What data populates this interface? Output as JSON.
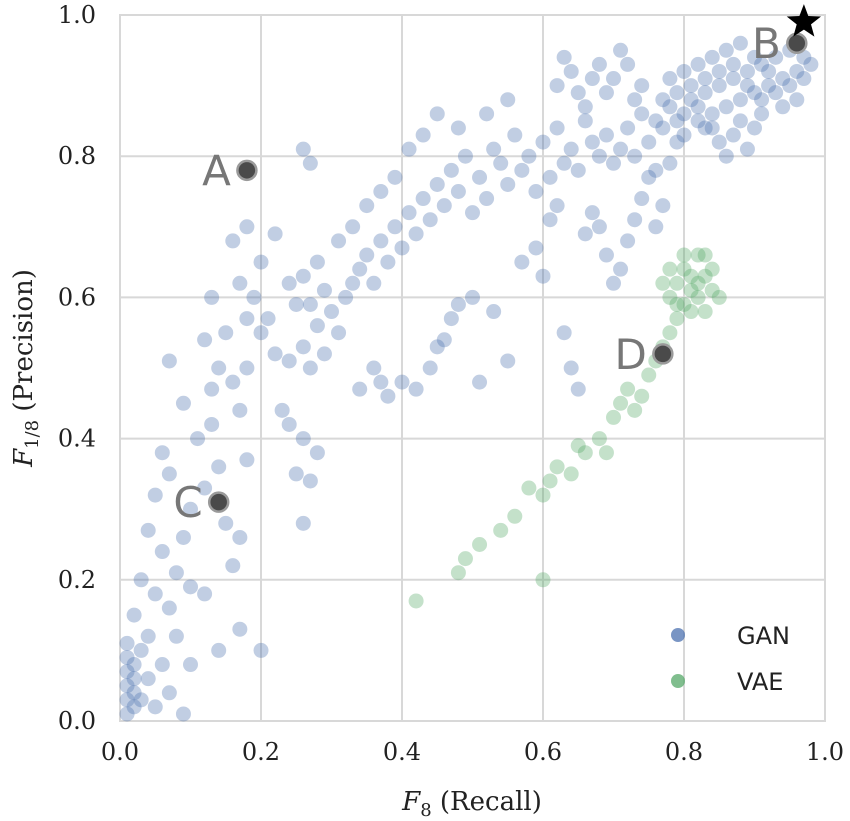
{
  "chart_data": {
    "type": "scatter",
    "title": "",
    "xlabel": {
      "symbol": "F",
      "sub": "8",
      "text": "(Recall)"
    },
    "ylabel": {
      "symbol": "F",
      "sub": "1/8",
      "text": "(Precision)"
    },
    "xlim": [
      0,
      1
    ],
    "ylim": [
      0,
      1
    ],
    "xticks": [
      "0.0",
      "0.2",
      "0.4",
      "0.6",
      "0.8",
      "1.0"
    ],
    "yticks": [
      "0.0",
      "0.2",
      "0.4",
      "0.6",
      "0.8",
      "1.0"
    ],
    "grid": true,
    "legend_position": "bottom-right",
    "colors": {
      "GAN": "#4c72b0",
      "VAE": "#55a868",
      "highlight": "#4a4a4a",
      "grid": "#d8d8d8"
    },
    "series": [
      {
        "name": "GAN",
        "points": [
          [
            0.01,
            0.01
          ],
          [
            0.01,
            0.03
          ],
          [
            0.01,
            0.05
          ],
          [
            0.01,
            0.07
          ],
          [
            0.01,
            0.09
          ],
          [
            0.01,
            0.11
          ],
          [
            0.02,
            0.02
          ],
          [
            0.02,
            0.04
          ],
          [
            0.02,
            0.06
          ],
          [
            0.02,
            0.08
          ],
          [
            0.03,
            0.03
          ],
          [
            0.03,
            0.1
          ],
          [
            0.04,
            0.06
          ],
          [
            0.05,
            0.02
          ],
          [
            0.06,
            0.08
          ],
          [
            0.07,
            0.04
          ],
          [
            0.09,
            0.01
          ],
          [
            0.04,
            0.12
          ],
          [
            0.02,
            0.15
          ],
          [
            0.05,
            0.18
          ],
          [
            0.03,
            0.2
          ],
          [
            0.07,
            0.16
          ],
          [
            0.08,
            0.21
          ],
          [
            0.1,
            0.19
          ],
          [
            0.06,
            0.24
          ],
          [
            0.04,
            0.27
          ],
          [
            0.09,
            0.26
          ],
          [
            0.05,
            0.32
          ],
          [
            0.07,
            0.35
          ],
          [
            0.06,
            0.38
          ],
          [
            0.1,
            0.3
          ],
          [
            0.12,
            0.33
          ],
          [
            0.11,
            0.4
          ],
          [
            0.13,
            0.42
          ],
          [
            0.14,
            0.36
          ],
          [
            0.15,
            0.28
          ],
          [
            0.16,
            0.22
          ],
          [
            0.17,
            0.26
          ],
          [
            0.13,
            0.47
          ],
          [
            0.14,
            0.5
          ],
          [
            0.16,
            0.48
          ],
          [
            0.17,
            0.44
          ],
          [
            0.18,
            0.37
          ],
          [
            0.18,
            0.5
          ],
          [
            0.12,
            0.54
          ],
          [
            0.15,
            0.55
          ],
          [
            0.18,
            0.57
          ],
          [
            0.19,
            0.6
          ],
          [
            0.2,
            0.55
          ],
          [
            0.21,
            0.57
          ],
          [
            0.17,
            0.62
          ],
          [
            0.16,
            0.68
          ],
          [
            0.18,
            0.7
          ],
          [
            0.2,
            0.65
          ],
          [
            0.22,
            0.69
          ],
          [
            0.13,
            0.6
          ],
          [
            0.07,
            0.51
          ],
          [
            0.09,
            0.45
          ],
          [
            0.12,
            0.18
          ],
          [
            0.14,
            0.1
          ],
          [
            0.2,
            0.1
          ],
          [
            0.17,
            0.13
          ],
          [
            0.1,
            0.08
          ],
          [
            0.08,
            0.12
          ],
          [
            0.24,
            0.51
          ],
          [
            0.26,
            0.53
          ],
          [
            0.27,
            0.5
          ],
          [
            0.28,
            0.56
          ],
          [
            0.29,
            0.52
          ],
          [
            0.3,
            0.58
          ],
          [
            0.31,
            0.55
          ],
          [
            0.32,
            0.6
          ],
          [
            0.33,
            0.62
          ],
          [
            0.34,
            0.64
          ],
          [
            0.35,
            0.66
          ],
          [
            0.36,
            0.62
          ],
          [
            0.37,
            0.68
          ],
          [
            0.38,
            0.65
          ],
          [
            0.39,
            0.7
          ],
          [
            0.4,
            0.67
          ],
          [
            0.41,
            0.72
          ],
          [
            0.42,
            0.69
          ],
          [
            0.43,
            0.74
          ],
          [
            0.44,
            0.71
          ],
          [
            0.45,
            0.76
          ],
          [
            0.46,
            0.73
          ],
          [
            0.47,
            0.78
          ],
          [
            0.48,
            0.75
          ],
          [
            0.49,
            0.8
          ],
          [
            0.5,
            0.72
          ],
          [
            0.51,
            0.77
          ],
          [
            0.52,
            0.74
          ],
          [
            0.53,
            0.81
          ],
          [
            0.54,
            0.79
          ],
          [
            0.55,
            0.76
          ],
          [
            0.56,
            0.83
          ],
          [
            0.57,
            0.78
          ],
          [
            0.58,
            0.8
          ],
          [
            0.59,
            0.75
          ],
          [
            0.6,
            0.82
          ],
          [
            0.61,
            0.77
          ],
          [
            0.62,
            0.84
          ],
          [
            0.63,
            0.79
          ],
          [
            0.64,
            0.81
          ],
          [
            0.65,
            0.78
          ],
          [
            0.66,
            0.85
          ],
          [
            0.67,
            0.82
          ],
          [
            0.68,
            0.8
          ],
          [
            0.69,
            0.83
          ],
          [
            0.7,
            0.79
          ],
          [
            0.71,
            0.81
          ],
          [
            0.72,
            0.84
          ],
          [
            0.73,
            0.8
          ],
          [
            0.74,
            0.86
          ],
          [
            0.75,
            0.82
          ],
          [
            0.76,
            0.78
          ],
          [
            0.77,
            0.84
          ],
          [
            0.78,
            0.87
          ],
          [
            0.79,
            0.85
          ],
          [
            0.8,
            0.83
          ],
          [
            0.26,
            0.81
          ],
          [
            0.27,
            0.79
          ],
          [
            0.24,
            0.62
          ],
          [
            0.26,
            0.63
          ],
          [
            0.28,
            0.65
          ],
          [
            0.25,
            0.59
          ],
          [
            0.27,
            0.59
          ],
          [
            0.29,
            0.61
          ],
          [
            0.22,
            0.52
          ],
          [
            0.23,
            0.44
          ],
          [
            0.24,
            0.42
          ],
          [
            0.26,
            0.4
          ],
          [
            0.25,
            0.35
          ],
          [
            0.27,
            0.34
          ],
          [
            0.28,
            0.38
          ],
          [
            0.26,
            0.28
          ],
          [
            0.34,
            0.47
          ],
          [
            0.36,
            0.5
          ],
          [
            0.37,
            0.48
          ],
          [
            0.38,
            0.46
          ],
          [
            0.4,
            0.48
          ],
          [
            0.42,
            0.47
          ],
          [
            0.44,
            0.5
          ],
          [
            0.45,
            0.53
          ],
          [
            0.46,
            0.54
          ],
          [
            0.47,
            0.57
          ],
          [
            0.48,
            0.59
          ],
          [
            0.5,
            0.6
          ],
          [
            0.51,
            0.48
          ],
          [
            0.53,
            0.58
          ],
          [
            0.55,
            0.51
          ],
          [
            0.57,
            0.65
          ],
          [
            0.59,
            0.67
          ],
          [
            0.6,
            0.63
          ],
          [
            0.61,
            0.71
          ],
          [
            0.62,
            0.73
          ],
          [
            0.63,
            0.55
          ],
          [
            0.64,
            0.5
          ],
          [
            0.65,
            0.47
          ],
          [
            0.66,
            0.69
          ],
          [
            0.67,
            0.72
          ],
          [
            0.68,
            0.7
          ],
          [
            0.69,
            0.66
          ],
          [
            0.7,
            0.62
          ],
          [
            0.71,
            0.64
          ],
          [
            0.72,
            0.68
          ],
          [
            0.73,
            0.71
          ],
          [
            0.74,
            0.74
          ],
          [
            0.75,
            0.77
          ],
          [
            0.76,
            0.7
          ],
          [
            0.77,
            0.73
          ],
          [
            0.78,
            0.79
          ],
          [
            0.79,
            0.82
          ],
          [
            0.8,
            0.86
          ],
          [
            0.81,
            0.88
          ],
          [
            0.82,
            0.85
          ],
          [
            0.83,
            0.89
          ],
          [
            0.84,
            0.86
          ],
          [
            0.85,
            0.9
          ],
          [
            0.86,
            0.87
          ],
          [
            0.87,
            0.91
          ],
          [
            0.88,
            0.88
          ],
          [
            0.89,
            0.92
          ],
          [
            0.9,
            0.89
          ],
          [
            0.91,
            0.93
          ],
          [
            0.92,
            0.9
          ],
          [
            0.93,
            0.94
          ],
          [
            0.94,
            0.91
          ],
          [
            0.95,
            0.95
          ],
          [
            0.96,
            0.92
          ],
          [
            0.97,
            0.94
          ],
          [
            0.98,
            0.93
          ],
          [
            0.82,
            0.93
          ],
          [
            0.83,
            0.91
          ],
          [
            0.84,
            0.94
          ],
          [
            0.85,
            0.92
          ],
          [
            0.86,
            0.95
          ],
          [
            0.87,
            0.93
          ],
          [
            0.88,
            0.96
          ],
          [
            0.89,
            0.9
          ],
          [
            0.9,
            0.94
          ],
          [
            0.91,
            0.88
          ],
          [
            0.92,
            0.92
          ],
          [
            0.93,
            0.89
          ],
          [
            0.94,
            0.87
          ],
          [
            0.95,
            0.9
          ],
          [
            0.96,
            0.88
          ],
          [
            0.97,
            0.91
          ],
          [
            0.84,
            0.84
          ],
          [
            0.85,
            0.82
          ],
          [
            0.86,
            0.8
          ],
          [
            0.87,
            0.83
          ],
          [
            0.88,
            0.85
          ],
          [
            0.89,
            0.81
          ],
          [
            0.9,
            0.84
          ],
          [
            0.91,
            0.86
          ],
          [
            0.78,
            0.91
          ],
          [
            0.79,
            0.89
          ],
          [
            0.8,
            0.92
          ],
          [
            0.81,
            0.9
          ],
          [
            0.82,
            0.87
          ],
          [
            0.83,
            0.84
          ],
          [
            0.77,
            0.88
          ],
          [
            0.76,
            0.85
          ],
          [
            0.74,
            0.9
          ],
          [
            0.73,
            0.88
          ],
          [
            0.72,
            0.93
          ],
          [
            0.71,
            0.95
          ],
          [
            0.7,
            0.91
          ],
          [
            0.69,
            0.89
          ],
          [
            0.68,
            0.93
          ],
          [
            0.67,
            0.91
          ],
          [
            0.66,
            0.87
          ],
          [
            0.65,
            0.89
          ],
          [
            0.64,
            0.92
          ],
          [
            0.63,
            0.94
          ],
          [
            0.62,
            0.9
          ],
          [
            0.55,
            0.88
          ],
          [
            0.52,
            0.86
          ],
          [
            0.48,
            0.84
          ],
          [
            0.45,
            0.86
          ],
          [
            0.43,
            0.83
          ],
          [
            0.41,
            0.81
          ],
          [
            0.39,
            0.77
          ],
          [
            0.37,
            0.75
          ],
          [
            0.35,
            0.73
          ],
          [
            0.33,
            0.7
          ],
          [
            0.31,
            0.68
          ]
        ]
      },
      {
        "name": "VAE",
        "points": [
          [
            0.42,
            0.17
          ],
          [
            0.48,
            0.21
          ],
          [
            0.49,
            0.23
          ],
          [
            0.51,
            0.25
          ],
          [
            0.54,
            0.27
          ],
          [
            0.56,
            0.29
          ],
          [
            0.58,
            0.33
          ],
          [
            0.6,
            0.32
          ],
          [
            0.61,
            0.34
          ],
          [
            0.62,
            0.36
          ],
          [
            0.64,
            0.35
          ],
          [
            0.66,
            0.38
          ],
          [
            0.68,
            0.4
          ],
          [
            0.7,
            0.43
          ],
          [
            0.71,
            0.45
          ],
          [
            0.72,
            0.47
          ],
          [
            0.73,
            0.44
          ],
          [
            0.74,
            0.46
          ],
          [
            0.75,
            0.49
          ],
          [
            0.76,
            0.51
          ],
          [
            0.77,
            0.53
          ],
          [
            0.78,
            0.55
          ],
          [
            0.79,
            0.57
          ],
          [
            0.8,
            0.59
          ],
          [
            0.81,
            0.61
          ],
          [
            0.82,
            0.62
          ],
          [
            0.83,
            0.63
          ],
          [
            0.79,
            0.62
          ],
          [
            0.8,
            0.64
          ],
          [
            0.81,
            0.63
          ],
          [
            0.82,
            0.6
          ],
          [
            0.83,
            0.58
          ],
          [
            0.84,
            0.61
          ],
          [
            0.78,
            0.6
          ],
          [
            0.77,
            0.62
          ],
          [
            0.8,
            0.66
          ],
          [
            0.82,
            0.66
          ],
          [
            0.81,
            0.58
          ],
          [
            0.79,
            0.59
          ],
          [
            0.84,
            0.64
          ],
          [
            0.83,
            0.66
          ],
          [
            0.85,
            0.6
          ],
          [
            0.78,
            0.64
          ],
          [
            0.6,
            0.2
          ],
          [
            0.69,
            0.38
          ],
          [
            0.65,
            0.39
          ]
        ]
      }
    ],
    "highlighted_points": [
      {
        "label": "A",
        "x": 0.18,
        "y": 0.78
      },
      {
        "label": "B",
        "x": 0.96,
        "y": 0.96
      },
      {
        "label": "C",
        "x": 0.14,
        "y": 0.31
      },
      {
        "label": "D",
        "x": 0.77,
        "y": 0.52
      }
    ],
    "star_marker": {
      "x": 0.97,
      "y": 0.99
    }
  }
}
